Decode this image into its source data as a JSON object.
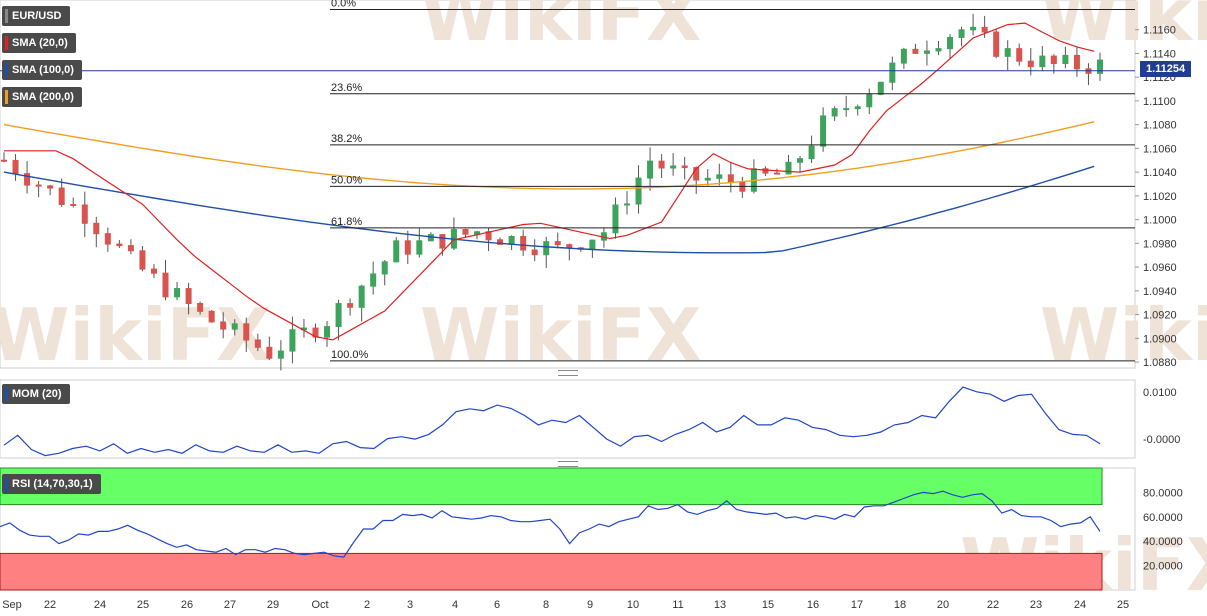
{
  "chart_data": {
    "type": "candlestick",
    "symbol": "EUR/USD",
    "price_axis": {
      "min": 1.0875,
      "max": 1.1185,
      "ticks": [
        "1.1160",
        "1.1140",
        "1.1120",
        "1.1100",
        "1.1080",
        "1.1060",
        "1.1040",
        "1.1020",
        "1.1000",
        "1.0980",
        "1.0960",
        "1.0940",
        "1.0920",
        "1.0900",
        "1.0880"
      ]
    },
    "current_price": "1.11254",
    "x_axis_labels": [
      "Sep",
      "22",
      "24",
      "25",
      "26",
      "27",
      "29",
      "Oct",
      "2",
      "3",
      "4",
      "6",
      "8",
      "9",
      "10",
      "11",
      "13",
      "15",
      "16",
      "17",
      "18",
      "20",
      "22",
      "23",
      "24",
      "25"
    ],
    "fibonacci": [
      {
        "label": "0.0%",
        "price": 1.1177
      },
      {
        "label": "23.6%",
        "price": 1.1106
      },
      {
        "label": "38.2%",
        "price": 1.1063
      },
      {
        "label": "50.0%",
        "price": 1.1028
      },
      {
        "label": "61.8%",
        "price": 1.0993
      },
      {
        "label": "100.0%",
        "price": 1.0881
      }
    ],
    "indicators": [
      {
        "name": "SMA (20,0)",
        "color": "#e02020"
      },
      {
        "name": "SMA (100,0)",
        "color": "#1f4fa8"
      },
      {
        "name": "SMA (200,0)",
        "color": "#f0a020"
      }
    ],
    "momentum": {
      "label": "MOM (20)",
      "ticks": [
        "0.0100",
        "-0.0000"
      ],
      "values": [
        -0.0013,
        0.0008,
        -0.0022,
        -0.0035,
        -0.003,
        -0.002,
        -0.0015,
        -0.0025,
        -0.001,
        -0.003,
        -0.002,
        -0.0028,
        -0.0022,
        -0.003,
        -0.0012,
        -0.0025,
        -0.0028,
        -0.0015,
        -0.0025,
        -0.0028,
        -0.0012,
        -0.0028,
        -0.0025,
        -0.003,
        -0.001,
        -0.0005,
        -0.0018,
        -0.002,
        0.0001,
        0.0005,
        0.0,
        0.001,
        0.003,
        0.0058,
        0.0064,
        0.006,
        0.0072,
        0.0065,
        0.005,
        0.003,
        0.004,
        0.0035,
        0.005,
        0.0025,
        0.0,
        -0.0015,
        0.0005,
        0.0008,
        -0.0005,
        0.001,
        0.002,
        0.0035,
        0.0015,
        0.0025,
        0.005,
        0.003,
        0.003,
        0.0045,
        0.004,
        0.0025,
        0.002,
        0.0008,
        0.0005,
        0.0008,
        0.0015,
        0.003,
        0.0035,
        0.005,
        0.0045,
        0.008,
        0.011,
        0.01,
        0.0095,
        0.008,
        0.0092,
        0.0095,
        0.0055,
        0.002,
        0.001,
        0.0008,
        -0.001
      ],
      "first_ticks": [
        "0.0100",
        "-0.0000"
      ]
    },
    "rsi": {
      "label": "RSI (14,70,30,1)",
      "overbought": 70,
      "oversold": 30,
      "ticks": [
        "80.0000",
        "60.0000",
        "40.0000",
        "20.0000"
      ],
      "values": [
        52,
        55,
        49,
        45,
        44,
        44,
        38,
        41,
        46,
        45,
        48,
        48,
        50,
        53,
        49,
        46,
        42,
        38,
        35,
        37,
        33,
        32,
        31,
        34,
        29,
        33,
        33,
        31,
        34,
        33,
        30,
        29,
        30,
        31,
        28,
        27,
        39,
        50,
        50,
        57,
        57,
        62,
        61,
        62,
        59,
        65,
        60,
        59,
        58,
        59,
        61,
        60,
        57,
        56,
        56,
        57,
        58,
        50,
        38,
        47,
        50,
        54,
        52,
        56,
        58,
        60,
        69,
        66,
        67,
        70,
        64,
        62,
        65,
        67,
        73,
        66,
        64,
        63,
        62,
        63,
        59,
        60,
        58,
        61,
        60,
        58,
        62,
        60,
        68,
        69,
        69,
        72,
        75,
        78,
        80,
        79,
        81,
        78,
        76,
        78,
        79,
        73,
        63,
        66,
        61,
        60,
        60,
        57,
        52,
        54,
        55,
        60,
        48
      ]
    }
  },
  "ui": {
    "symbol_label": "EUR/USD",
    "sma20_label": "SMA (20,0)",
    "sma100_label": "SMA (100,0)",
    "sma200_label": "SMA (200,0)",
    "mom_label": "MOM (20)",
    "rsi_label": "RSI (14,70,30,1)",
    "price_tag": "1.11254",
    "watermark": "WikiFX"
  }
}
